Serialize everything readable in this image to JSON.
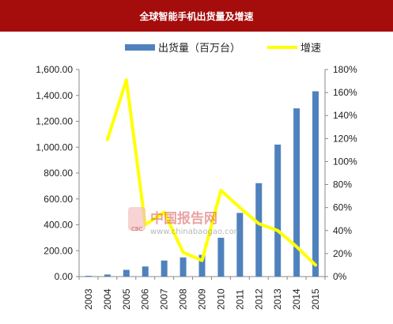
{
  "title": "全球智能手机出货量及增速",
  "colors": {
    "title_bg": "#a50d0d",
    "bar": "#4f81bd",
    "line": "#ffff00"
  },
  "watermark": {
    "logo": "CBC",
    "text": "中国报告网",
    "url": "www.chinabaogao.com"
  },
  "chart_data": {
    "type": "bar",
    "categories": [
      "2003",
      "2004",
      "2005",
      "2006",
      "2007",
      "2008",
      "2009",
      "2010",
      "2011",
      "2012",
      "2013",
      "2014",
      "2015"
    ],
    "series": [
      {
        "name": "出货量（百万台）",
        "type": "bar",
        "axis": "left",
        "values": [
          6,
          16,
          52,
          78,
          124,
          148,
          168,
          300,
          492,
          722,
          1020,
          1300,
          1432
        ]
      },
      {
        "name": "增速",
        "type": "line",
        "axis": "right",
        "values": [
          null,
          119,
          171,
          45,
          56,
          21,
          14,
          75,
          60,
          46,
          40,
          26,
          10
        ]
      }
    ],
    "left_axis": {
      "min": 0,
      "max": 1600,
      "ticks": [
        "0.00",
        "200.00",
        "400.00",
        "600.00",
        "800.00",
        "1,000.00",
        "1,200.00",
        "1,400.00",
        "1,600.00"
      ]
    },
    "right_axis": {
      "min": 0,
      "max": 180,
      "ticks": [
        "0%",
        "20%",
        "40%",
        "60%",
        "80%",
        "100%",
        "120%",
        "140%",
        "160%",
        "180%"
      ]
    },
    "legend_position": "top",
    "grid": false
  }
}
